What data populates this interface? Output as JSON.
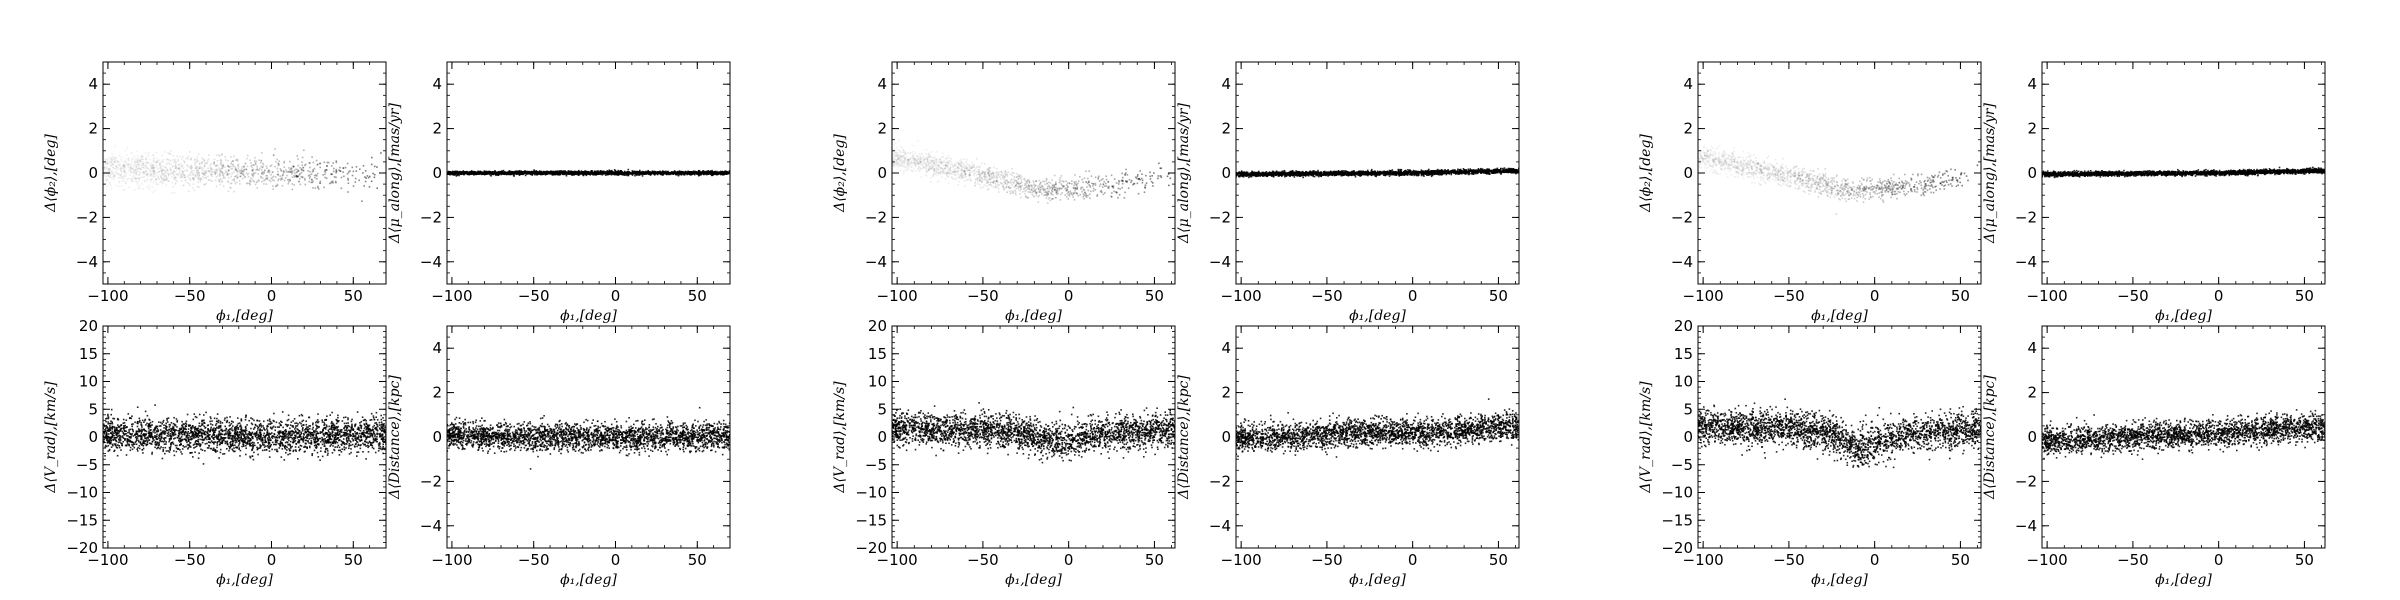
{
  "figure": {
    "layout": "3 groups x (2 rows x 2 columns) of scatter panels"
  },
  "labels": {
    "phi2": "Δ⟨ϕ₂⟩,[deg]",
    "mu": "Δ⟨μ_along⟩,[mas/yr]",
    "vrad": "Δ⟨V_rad⟩,[km/s]",
    "dist": "Δ⟨Distance⟩,[kpc]",
    "phi1": "ϕ₁,[deg]"
  },
  "chart_data": [
    {
      "type": "scatter",
      "panel": "group1-top-left",
      "xlabel": "ϕ₁,[deg]",
      "ylabel": "Δ⟨ϕ₂⟩,[deg]",
      "xlim": [
        -103,
        70
      ],
      "ylim": [
        -5,
        5
      ],
      "xticks": [
        -100,
        -50,
        0,
        50
      ],
      "yticks": [
        -4,
        -2,
        0,
        2,
        4
      ],
      "shading": "density",
      "trend": [
        [
          -103,
          0.2
        ],
        [
          -60,
          0.1
        ],
        [
          -20,
          0.0
        ],
        [
          20,
          -0.05
        ],
        [
          50,
          -0.05
        ],
        [
          70,
          -0.05
        ]
      ],
      "scatter_spread": 0.35
    },
    {
      "type": "scatter",
      "panel": "group1-top-right",
      "xlabel": "ϕ₁,[deg]",
      "ylabel": "Δ⟨μ_along⟩,[mas/yr]",
      "xlim": [
        -103,
        70
      ],
      "ylim": [
        -5,
        5
      ],
      "xticks": [
        -100,
        -50,
        0,
        50
      ],
      "yticks": [
        -4,
        -2,
        0,
        2,
        4
      ],
      "shading": "solid",
      "trend": [
        [
          -103,
          0.0
        ],
        [
          70,
          0.0
        ]
      ],
      "scatter_spread": 0.04
    },
    {
      "type": "scatter",
      "panel": "group1-bottom-left",
      "xlabel": "ϕ₁,[deg]",
      "ylabel": "Δ⟨V_rad⟩,[km/s]",
      "xlim": [
        -103,
        70
      ],
      "ylim": [
        -20,
        20
      ],
      "xticks": [
        -100,
        -50,
        0,
        50
      ],
      "yticks": [
        -20,
        -15,
        -10,
        -5,
        0,
        5,
        10,
        15,
        20
      ],
      "shading": "solid",
      "trend": [
        [
          -103,
          0.5
        ],
        [
          -50,
          0.3
        ],
        [
          0,
          0.0
        ],
        [
          40,
          0.3
        ],
        [
          70,
          0.5
        ]
      ],
      "scatter_spread": 1.5
    },
    {
      "type": "scatter",
      "panel": "group1-bottom-right",
      "xlabel": "ϕ₁,[deg]",
      "ylabel": "Δ⟨Distance⟩,[kpc]",
      "xlim": [
        -103,
        70
      ],
      "ylim": [
        -5,
        5
      ],
      "xticks": [
        -100,
        -50,
        0,
        50
      ],
      "yticks": [
        -4,
        -2,
        0,
        2,
        4
      ],
      "shading": "solid",
      "trend": [
        [
          -103,
          0.05
        ],
        [
          -50,
          0.0
        ],
        [
          0,
          0.0
        ],
        [
          70,
          0.05
        ]
      ],
      "scatter_spread": 0.3
    },
    {
      "type": "scatter",
      "panel": "group2-top-left",
      "xlabel": "ϕ₁,[deg]",
      "ylabel": "Δ⟨ϕ₂⟩,[deg]",
      "xlim": [
        -103,
        62
      ],
      "ylim": [
        -5,
        5
      ],
      "xticks": [
        -100,
        -50,
        0,
        50
      ],
      "yticks": [
        -4,
        -2,
        0,
        2,
        4
      ],
      "shading": "density",
      "trend": [
        [
          -103,
          0.7
        ],
        [
          -75,
          0.3
        ],
        [
          -50,
          -0.1
        ],
        [
          -30,
          -0.5
        ],
        [
          -15,
          -0.8
        ],
        [
          0,
          -0.7
        ],
        [
          20,
          -0.6
        ],
        [
          40,
          -0.4
        ],
        [
          62,
          0.0
        ]
      ],
      "scatter_spread": 0.25
    },
    {
      "type": "scatter",
      "panel": "group2-top-right",
      "xlabel": "ϕ₁,[deg]",
      "ylabel": "Δ⟨μ_along⟩,[mas/yr]",
      "xlim": [
        -103,
        62
      ],
      "ylim": [
        -5,
        5
      ],
      "xticks": [
        -100,
        -50,
        0,
        50
      ],
      "yticks": [
        -4,
        -2,
        0,
        2,
        4
      ],
      "shading": "solid",
      "trend": [
        [
          -103,
          -0.05
        ],
        [
          0,
          0.0
        ],
        [
          62,
          0.1
        ]
      ],
      "scatter_spread": 0.05
    },
    {
      "type": "scatter",
      "panel": "group2-bottom-left",
      "xlabel": "ϕ₁,[deg]",
      "ylabel": "Δ⟨V_rad⟩,[km/s]",
      "xlim": [
        -103,
        62
      ],
      "ylim": [
        -20,
        20
      ],
      "xticks": [
        -100,
        -50,
        0,
        50
      ],
      "yticks": [
        -20,
        -15,
        -10,
        -5,
        0,
        5,
        10,
        15,
        20
      ],
      "shading": "solid",
      "trend": [
        [
          -103,
          1.5
        ],
        [
          -50,
          1.2
        ],
        [
          -25,
          0.5
        ],
        [
          -10,
          -1.0
        ],
        [
          0,
          -0.5
        ],
        [
          20,
          0.5
        ],
        [
          62,
          1.5
        ]
      ],
      "scatter_spread": 1.5
    },
    {
      "type": "scatter",
      "panel": "group2-bottom-right",
      "xlabel": "ϕ₁,[deg]",
      "ylabel": "Δ⟨Distance⟩,[kpc]",
      "xlim": [
        -103,
        62
      ],
      "ylim": [
        -5,
        5
      ],
      "xticks": [
        -100,
        -50,
        0,
        50
      ],
      "yticks": [
        -4,
        -2,
        0,
        2,
        4
      ],
      "shading": "solid",
      "trend": [
        [
          -103,
          -0.1
        ],
        [
          -50,
          0.1
        ],
        [
          -20,
          0.2
        ],
        [
          10,
          0.2
        ],
        [
          40,
          0.4
        ],
        [
          62,
          0.5
        ]
      ],
      "scatter_spread": 0.3
    },
    {
      "type": "scatter",
      "panel": "group3-top-left",
      "xlabel": "ϕ₁,[deg]",
      "ylabel": "Δ⟨ϕ₂⟩,[deg]",
      "xlim": [
        -103,
        62
      ],
      "ylim": [
        -5,
        5
      ],
      "xticks": [
        -100,
        -50,
        0,
        50
      ],
      "yticks": [
        -4,
        -2,
        0,
        2,
        4
      ],
      "shading": "density",
      "trend": [
        [
          -103,
          0.7
        ],
        [
          -75,
          0.3
        ],
        [
          -50,
          -0.1
        ],
        [
          -30,
          -0.5
        ],
        [
          -15,
          -0.8
        ],
        [
          0,
          -0.7
        ],
        [
          20,
          -0.6
        ],
        [
          40,
          -0.4
        ],
        [
          62,
          0.0
        ]
      ],
      "scatter_spread": 0.25
    },
    {
      "type": "scatter",
      "panel": "group3-top-right",
      "xlabel": "ϕ₁,[deg]",
      "ylabel": "Δ⟨μ_along⟩,[mas/yr]",
      "xlim": [
        -103,
        62
      ],
      "ylim": [
        -5,
        5
      ],
      "xticks": [
        -100,
        -50,
        0,
        50
      ],
      "yticks": [
        -4,
        -2,
        0,
        2,
        4
      ],
      "shading": "solid",
      "trend": [
        [
          -103,
          -0.05
        ],
        [
          0,
          0.0
        ],
        [
          62,
          0.1
        ]
      ],
      "scatter_spread": 0.05
    },
    {
      "type": "scatter",
      "panel": "group3-bottom-left",
      "xlabel": "ϕ₁,[deg]",
      "ylabel": "Δ⟨V_rad⟩,[km/s]",
      "xlim": [
        -103,
        62
      ],
      "ylim": [
        -20,
        20
      ],
      "xticks": [
        -100,
        -50,
        0,
        50
      ],
      "yticks": [
        -20,
        -15,
        -10,
        -5,
        0,
        5,
        10,
        15,
        20
      ],
      "shading": "solid",
      "trend": [
        [
          -103,
          2.0
        ],
        [
          -50,
          1.5
        ],
        [
          -25,
          0.5
        ],
        [
          -10,
          -2.5
        ],
        [
          0,
          -1.0
        ],
        [
          20,
          0.5
        ],
        [
          62,
          1.5
        ]
      ],
      "scatter_spread": 1.6
    },
    {
      "type": "scatter",
      "panel": "group3-bottom-right",
      "xlabel": "ϕ₁,[deg]",
      "ylabel": "Δ⟨Distance⟩,[kpc]",
      "xlim": [
        -103,
        62
      ],
      "ylim": [
        -5,
        5
      ],
      "xticks": [
        -100,
        -50,
        0,
        50
      ],
      "yticks": [
        -4,
        -2,
        0,
        2,
        4
      ],
      "shading": "solid",
      "trend": [
        [
          -103,
          -0.2
        ],
        [
          -50,
          0.0
        ],
        [
          -20,
          0.1
        ],
        [
          10,
          0.2
        ],
        [
          40,
          0.4
        ],
        [
          62,
          0.4
        ]
      ],
      "scatter_spread": 0.3
    }
  ]
}
